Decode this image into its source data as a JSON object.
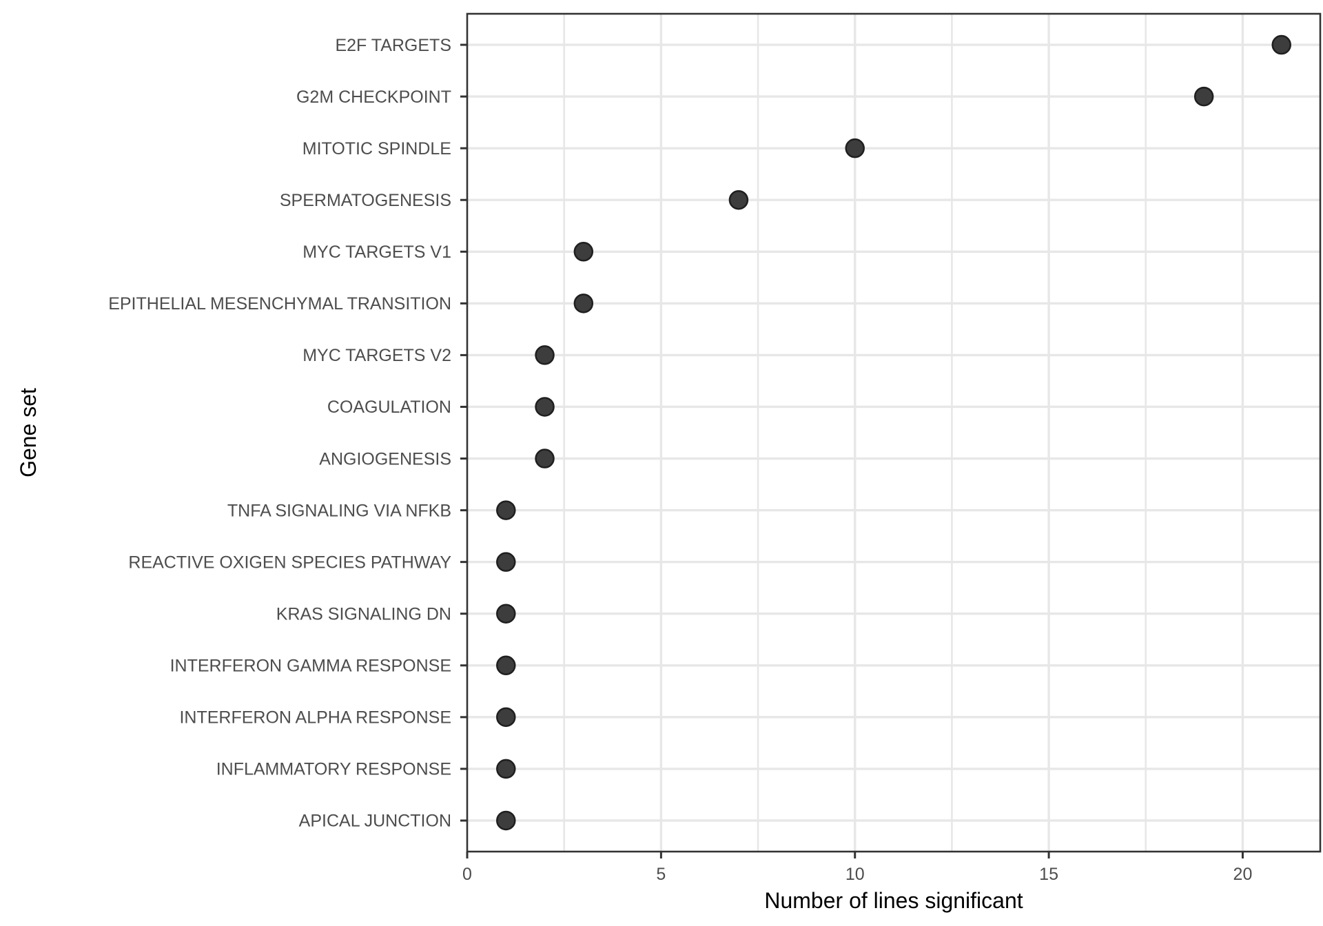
{
  "figure": {
    "background": "#ffffff"
  },
  "chart_data": {
    "type": "scatter",
    "subtype": "horizontal-dot-plot",
    "title": "",
    "xlabel": "Number of lines significant",
    "ylabel": "Gene set",
    "categories": [
      "E2F TARGETS",
      "G2M CHECKPOINT",
      "MITOTIC SPINDLE",
      "SPERMATOGENESIS",
      "MYC TARGETS V1",
      "EPITHELIAL MESENCHYMAL TRANSITION",
      "MYC TARGETS V2",
      "COAGULATION",
      "ANGIOGENESIS",
      "TNFA SIGNALING VIA NFKB",
      "REACTIVE OXIGEN SPECIES PATHWAY",
      "KRAS SIGNALING DN",
      "INTERFERON GAMMA RESPONSE",
      "INTERFERON ALPHA RESPONSE",
      "INFLAMMATORY RESPONSE",
      "APICAL JUNCTION"
    ],
    "values": [
      21,
      19,
      10,
      7,
      3,
      3,
      2,
      2,
      2,
      1,
      1,
      1,
      1,
      1,
      1,
      1
    ],
    "xlim": [
      0,
      22
    ],
    "x_major_ticks": [
      0,
      5,
      10,
      15,
      20
    ],
    "x_minor_gridlines": [
      2.5,
      7.5,
      12.5,
      17.5
    ],
    "grid": true,
    "legend": "none",
    "colors": {
      "point_fill": "#3D3D3D",
      "point_stroke": "#1F1F1F",
      "grid": "#E7E7E7",
      "panel_border": "#333333",
      "tick_mark": "#333333",
      "axis_text": "#4D4D4D",
      "axis_title": "#000000",
      "panel_background": "#FFFFFF"
    }
  }
}
